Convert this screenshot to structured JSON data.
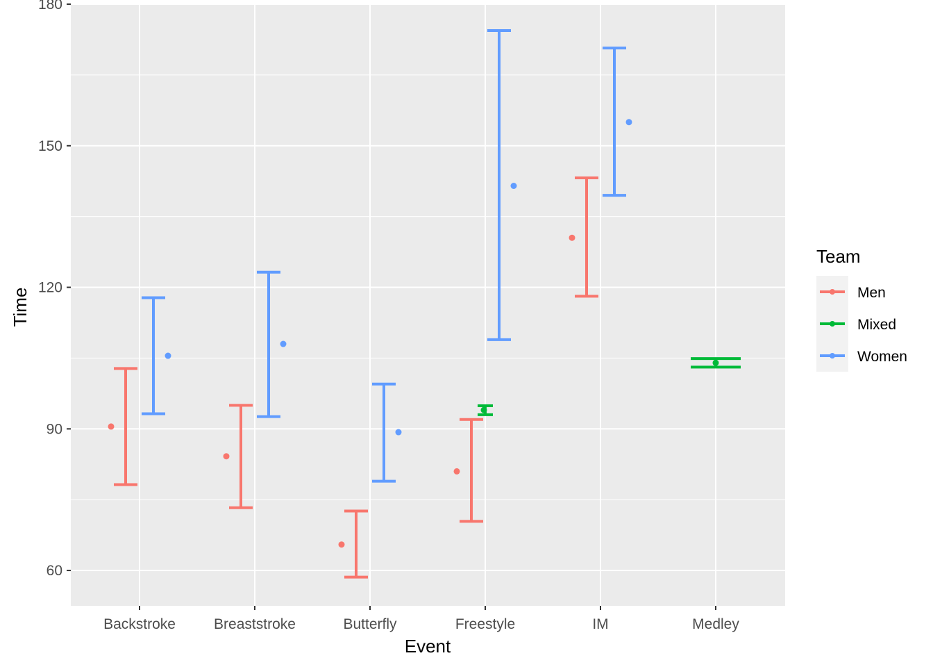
{
  "chart_data": {
    "type": "errorbar",
    "xlabel": "Event",
    "ylabel": "Time",
    "categories": [
      "Backstroke",
      "Breaststroke",
      "Butterfly",
      "Freestyle",
      "IM",
      "Medley"
    ],
    "ylim": [
      52.5,
      180
    ],
    "yticks": [
      60,
      90,
      120,
      150,
      180
    ],
    "grid": true,
    "legend": {
      "title": "Team",
      "position": "right",
      "entries": [
        "Men",
        "Mixed",
        "Women"
      ]
    },
    "colors": {
      "Men": "#F8766D",
      "Mixed": "#00BA38",
      "Women": "#619CFF"
    },
    "series": [
      {
        "name": "Men",
        "points": [
          {
            "category": "Backstroke",
            "mean": 90.5,
            "lower": 78.2,
            "upper": 102.8
          },
          {
            "category": "Breaststroke",
            "mean": 84.2,
            "lower": 73.3,
            "upper": 95.0
          },
          {
            "category": "Butterfly",
            "mean": 65.5,
            "lower": 58.6,
            "upper": 72.6
          },
          {
            "category": "Freestyle",
            "mean": 81.0,
            "lower": 70.4,
            "upper": 92.0
          },
          {
            "category": "IM",
            "mean": 130.5,
            "lower": 118.1,
            "upper": 143.2
          }
        ]
      },
      {
        "name": "Mixed",
        "points": [
          {
            "category": "Freestyle",
            "mean": 94.0,
            "lower": 93.0,
            "upper": 94.9
          },
          {
            "category": "Medley",
            "mean": 104.0,
            "lower": 103.1,
            "upper": 104.9
          }
        ]
      },
      {
        "name": "Women",
        "points": [
          {
            "category": "Backstroke",
            "mean": 105.5,
            "lower": 93.2,
            "upper": 117.8
          },
          {
            "category": "Breaststroke",
            "mean": 108.0,
            "lower": 92.6,
            "upper": 123.2
          },
          {
            "category": "Butterfly",
            "mean": 89.3,
            "lower": 78.9,
            "upper": 99.5
          },
          {
            "category": "Freestyle",
            "mean": 141.5,
            "lower": 108.9,
            "upper": 174.4
          },
          {
            "category": "IM",
            "mean": 155.0,
            "lower": 139.5,
            "upper": 170.7
          }
        ]
      }
    ]
  }
}
